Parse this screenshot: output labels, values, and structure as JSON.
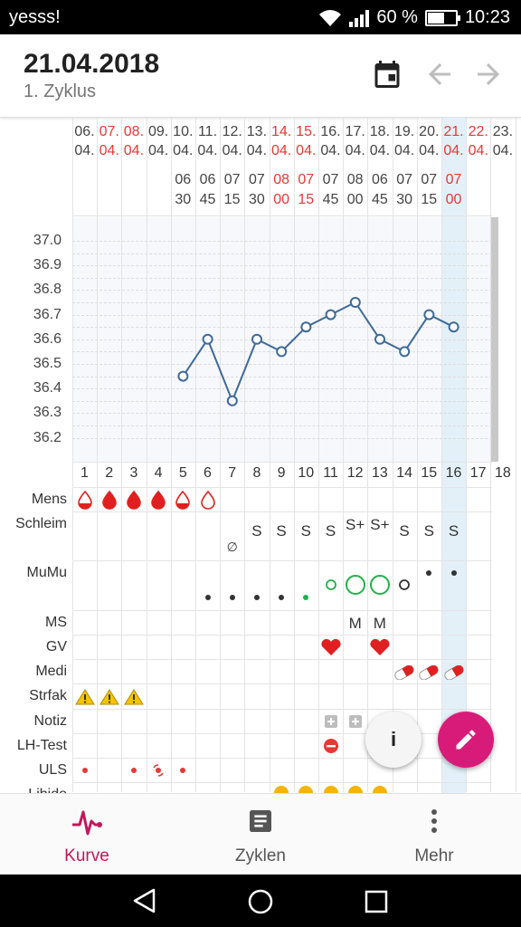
{
  "status_bar": {
    "carrier": "yesss!",
    "battery_percent": "60 %",
    "battery_level": 0.6,
    "time": "10:23"
  },
  "header": {
    "date": "21.04.2018",
    "cycle": "1. Zyklus",
    "icons": [
      "calendar-icon",
      "arrow-left-icon",
      "arrow-right-icon"
    ]
  },
  "colors": {
    "accent": "#d81b79",
    "weekend": "#e53935",
    "line": "#3f6a99",
    "today_column": "#e3f0f8"
  },
  "chart_data": {
    "type": "line",
    "dates": [
      {
        "day": "06.",
        "month": "04.",
        "weekend": false
      },
      {
        "day": "07.",
        "month": "04.",
        "weekend": true
      },
      {
        "day": "08.",
        "month": "04.",
        "weekend": true
      },
      {
        "day": "09.",
        "month": "04.",
        "weekend": false
      },
      {
        "day": "10.",
        "month": "04.",
        "weekend": false
      },
      {
        "day": "11.",
        "month": "04.",
        "weekend": false
      },
      {
        "day": "12.",
        "month": "04.",
        "weekend": false
      },
      {
        "day": "13.",
        "month": "04.",
        "weekend": false
      },
      {
        "day": "14.",
        "month": "04.",
        "weekend": true
      },
      {
        "day": "15.",
        "month": "04.",
        "weekend": true
      },
      {
        "day": "16.",
        "month": "04.",
        "weekend": false
      },
      {
        "day": "17.",
        "month": "04.",
        "weekend": false
      },
      {
        "day": "18.",
        "month": "04.",
        "weekend": false
      },
      {
        "day": "19.",
        "month": "04.",
        "weekend": false
      },
      {
        "day": "20.",
        "month": "04.",
        "weekend": false
      },
      {
        "day": "21.",
        "month": "04.",
        "weekend": true
      },
      {
        "day": "22.",
        "month": "04.",
        "weekend": true
      },
      {
        "day": "23.",
        "month": "04.",
        "weekend": false
      }
    ],
    "times": [
      null,
      null,
      null,
      null,
      {
        "h": "06",
        "m": "30",
        "weekend": false
      },
      {
        "h": "06",
        "m": "45",
        "weekend": false
      },
      {
        "h": "07",
        "m": "15",
        "weekend": false
      },
      {
        "h": "07",
        "m": "30",
        "weekend": false
      },
      {
        "h": "08",
        "m": "00",
        "weekend": true
      },
      {
        "h": "07",
        "m": "15",
        "weekend": true
      },
      {
        "h": "07",
        "m": "45",
        "weekend": false
      },
      {
        "h": "08",
        "m": "00",
        "weekend": false
      },
      {
        "h": "06",
        "m": "45",
        "weekend": false
      },
      {
        "h": "07",
        "m": "30",
        "weekend": false
      },
      {
        "h": "07",
        "m": "15",
        "weekend": false
      },
      {
        "h": "07",
        "m": "00",
        "weekend": true
      },
      null,
      null
    ],
    "cycle_days": [
      "1",
      "2",
      "3",
      "4",
      "5",
      "6",
      "7",
      "8",
      "9",
      "10",
      "11",
      "12",
      "13",
      "14",
      "15",
      "16",
      "17",
      "18"
    ],
    "cycle_day_weekend": [
      false,
      true,
      true,
      false,
      false,
      false,
      false,
      false,
      true,
      true,
      false,
      false,
      false,
      false,
      false,
      true,
      true,
      false
    ],
    "temperature": [
      null,
      null,
      null,
      null,
      36.45,
      36.6,
      36.35,
      36.6,
      36.55,
      36.65,
      36.7,
      36.75,
      36.6,
      36.55,
      36.7,
      36.65,
      null,
      null
    ],
    "y_ticks": [
      "37.0",
      "36.9",
      "36.8",
      "36.7",
      "36.6",
      "36.5",
      "36.4",
      "36.3",
      "36.2"
    ],
    "ylim": [
      36.2,
      37.0
    ],
    "today_index": 15,
    "grid": true
  },
  "rows": {
    "mens": {
      "label": "Mens",
      "values": [
        "drop-outline-red",
        "drop-full",
        "drop-full",
        "drop-full",
        "drop-outline-red",
        "drop-outline",
        null,
        null,
        null,
        null,
        null,
        null,
        null,
        null,
        null,
        null,
        null,
        null
      ]
    },
    "schleim": {
      "label": "Schleim",
      "values": [
        null,
        null,
        null,
        null,
        null,
        null,
        "∅",
        "S",
        "S",
        "S",
        "S",
        "S+",
        "S+",
        "S",
        "S",
        "S",
        null,
        null
      ]
    },
    "mumu": {
      "label": "MuMu",
      "values": [
        null,
        null,
        null,
        null,
        null,
        "dot",
        "dot",
        "dot",
        "dot",
        "dot-green",
        "circle-s",
        "circle-l",
        "circle-l",
        "circle-s-dark",
        "dot-high",
        "dot-high",
        null,
        null
      ]
    },
    "ms": {
      "label": "MS",
      "values": [
        null,
        null,
        null,
        null,
        null,
        null,
        null,
        null,
        null,
        null,
        null,
        "M",
        "M",
        null,
        null,
        null,
        null,
        null
      ]
    },
    "gv": {
      "label": "GV",
      "values": [
        null,
        null,
        null,
        null,
        null,
        null,
        null,
        null,
        null,
        null,
        "heart",
        null,
        "heart",
        null,
        null,
        null,
        null,
        null
      ]
    },
    "medi": {
      "label": "Medi",
      "values": [
        null,
        null,
        null,
        null,
        null,
        null,
        null,
        null,
        null,
        null,
        null,
        null,
        null,
        "pill",
        "pill",
        "pill",
        null,
        null
      ]
    },
    "strfak": {
      "label": "Strfak",
      "values": [
        "warning",
        "warning",
        "warning",
        null,
        null,
        null,
        null,
        null,
        null,
        null,
        null,
        null,
        null,
        null,
        null,
        null,
        null,
        null
      ]
    },
    "notiz": {
      "label": "Notiz",
      "values": [
        null,
        null,
        null,
        null,
        null,
        null,
        null,
        null,
        null,
        null,
        "note",
        "note",
        null,
        null,
        null,
        null,
        null,
        null
      ]
    },
    "lhtest": {
      "label": "LH-Test",
      "values": [
        null,
        null,
        null,
        null,
        null,
        null,
        null,
        null,
        null,
        null,
        "minus",
        null,
        null,
        null,
        null,
        null,
        null,
        null
      ]
    },
    "uls": {
      "label": "ULS",
      "values": [
        "dot-red",
        null,
        "dot-red",
        "target",
        "dot-red",
        null,
        null,
        null,
        null,
        null,
        null,
        null,
        null,
        null,
        null,
        null,
        null,
        null
      ]
    },
    "libido": {
      "label": "Libido",
      "values": [
        null,
        null,
        null,
        null,
        null,
        null,
        null,
        null,
        "face",
        "face",
        "face",
        "face",
        "face",
        null,
        null,
        null,
        null,
        null
      ]
    }
  },
  "fab": {
    "info_label": "i",
    "edit_icon": "pencil-icon"
  },
  "bottom_nav": [
    {
      "label": "Kurve",
      "icon": "pulse-curve-icon",
      "active": true
    },
    {
      "label": "Zyklen",
      "icon": "document-list-icon",
      "active": false
    },
    {
      "label": "Mehr",
      "icon": "more-vertical-icon",
      "active": false
    }
  ],
  "system_nav": [
    "back-icon",
    "home-icon",
    "recents-icon"
  ]
}
